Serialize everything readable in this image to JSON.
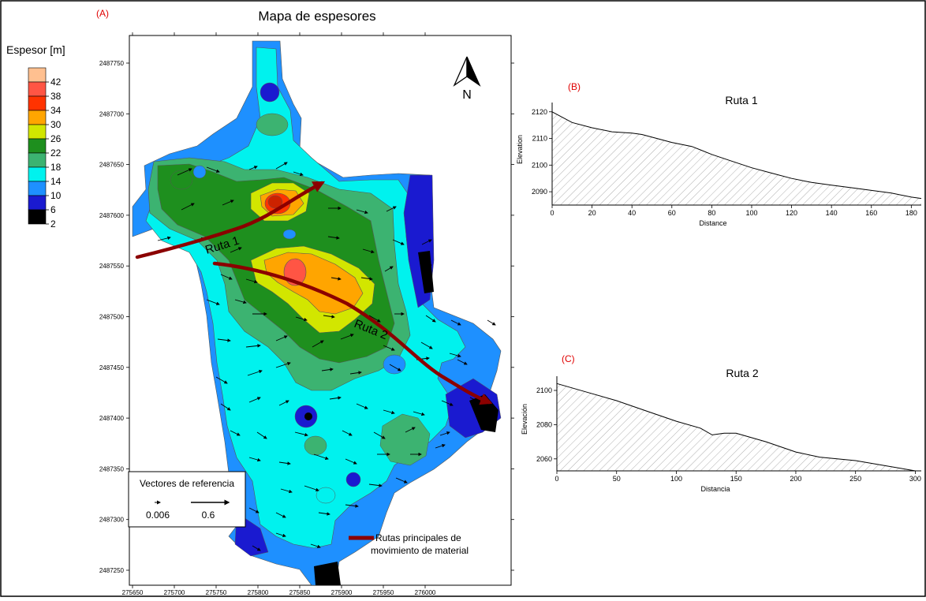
{
  "panel_a": {
    "label": "(A)",
    "title": "Mapa de espesores",
    "legend_title": "Espesor [m]",
    "legend_levels": [
      "2",
      "6",
      "10",
      "14",
      "18",
      "22",
      "26",
      "30",
      "34",
      "38",
      "42"
    ],
    "legend_colors": [
      "#000000",
      "#1a1ad0",
      "#1e90ff",
      "#00f2ee",
      "#3cb371",
      "#1e8f1e",
      "#d2e600",
      "#ffa500",
      "#ff3300",
      "#ff5544",
      "#ffc090"
    ],
    "y_ticks": [
      "2487750",
      "2487700",
      "2487650",
      "2487600",
      "2487550",
      "2487500",
      "2487450",
      "2487400",
      "2487350",
      "2487300",
      "2487250"
    ],
    "x_ticks": [
      "275650",
      "275700",
      "275750",
      "275800",
      "275850",
      "275900",
      "275950",
      "276000"
    ],
    "north_label": "N",
    "route1_label": "Ruta 1",
    "route2_label": "Ruta 2",
    "vector_box": {
      "title": "Vectores de referencia",
      "small_value": "0.006",
      "large_value": "0.6"
    },
    "route_legend": {
      "line1": "Rutas principales de",
      "line2": "movimiento de material",
      "color": "#8b0000"
    }
  },
  "chart_data": [
    {
      "type": "area",
      "panel_label": "(B)",
      "title": "Ruta 1",
      "xlabel": "Distance",
      "ylabel": "Elevation",
      "x_ticks": [
        0,
        20,
        40,
        60,
        80,
        100,
        120,
        140,
        160,
        180
      ],
      "y_ticks": [
        2090,
        2100,
        2110,
        2120
      ],
      "xlim": [
        0,
        185
      ],
      "ylim": [
        2085,
        2122
      ],
      "x": [
        0,
        10,
        20,
        30,
        40,
        45,
        50,
        60,
        70,
        80,
        90,
        100,
        110,
        120,
        130,
        140,
        150,
        160,
        170,
        180,
        185
      ],
      "y": [
        2120,
        2116,
        2114,
        2112.5,
        2112,
        2111.5,
        2110.5,
        2108.5,
        2107,
        2104,
        2101.5,
        2099,
        2097,
        2095,
        2093.5,
        2092.5,
        2091.5,
        2090.5,
        2089.5,
        2088,
        2087.5
      ]
    },
    {
      "type": "area",
      "panel_label": "(C)",
      "title": "Ruta 2",
      "xlabel": "Distancia",
      "ylabel": "Elevación",
      "x_ticks": [
        0,
        50,
        100,
        150,
        200,
        250,
        300
      ],
      "y_ticks": [
        2060,
        2080,
        2100
      ],
      "xlim": [
        0,
        305
      ],
      "ylim": [
        2053,
        2106
      ],
      "x": [
        0,
        25,
        50,
        75,
        100,
        120,
        130,
        140,
        150,
        160,
        175,
        200,
        220,
        250,
        275,
        300,
        305
      ],
      "y": [
        2104,
        2099,
        2094,
        2088,
        2082,
        2078,
        2074,
        2075,
        2075,
        2073,
        2070,
        2064,
        2061,
        2059,
        2056,
        2053,
        2053
      ]
    }
  ]
}
